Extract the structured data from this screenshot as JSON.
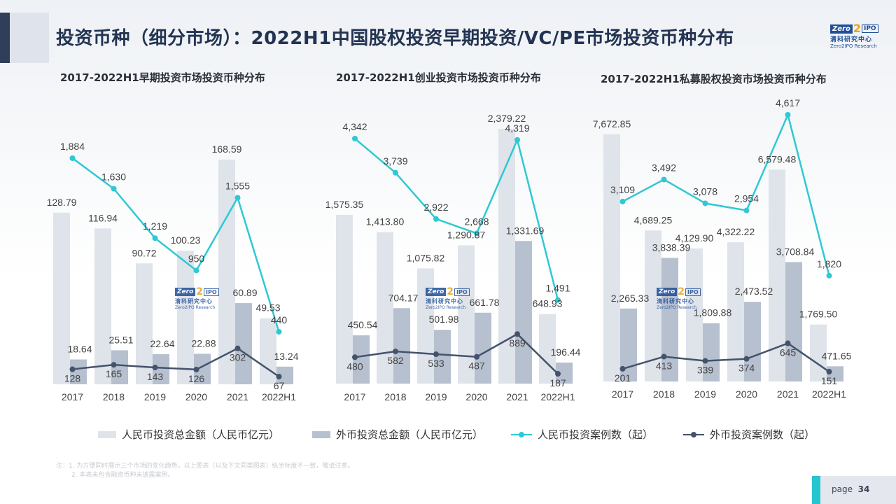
{
  "header": {
    "title": "投资币种（细分市场）：2022H1中国股权投资早期投资/VC/PE市场投资币种分布",
    "logo": {
      "top_left": "Zero",
      "digit": "2",
      "top_right": "IPO",
      "cn": "清科研究中心",
      "en": "Zero2IPO Research"
    }
  },
  "legend": {
    "rmb_amount": "人民币投资总金额（人民币亿元）",
    "fx_amount": "外币投资总金额（人民币亿元）",
    "rmb_cases": "人民币投资案例数（起）",
    "fx_cases": "外币投资案例数（起）"
  },
  "colors": {
    "rmb_bar": "#dfe3ea",
    "fx_bar": "#b6c0cf",
    "rmb_line": "#2ec9d3",
    "fx_line": "#44536b",
    "title": "#233452",
    "accent": "#27c5cf"
  },
  "notes": {
    "line1": "注：1. 为方便同时展示三个市场的变化趋势，以上图表（以及下文同类图表）纵坐标度不一致，敬请注意。",
    "line2": "2. 本表未包含融资币种未披露案例。"
  },
  "footer": {
    "page_label": "page",
    "page_number": "34"
  },
  "chart_data": [
    {
      "type": "bar",
      "title": "2017-2022H1早期投资市场投资币种分布",
      "categories": [
        "2017",
        "2018",
        "2019",
        "2020",
        "2021",
        "2022H1"
      ],
      "series": [
        {
          "name": "人民币投资总金额（人民币亿元）",
          "kind": "bar",
          "values": [
            128.79,
            116.94,
            90.72,
            100.23,
            168.59,
            49.53
          ],
          "labels": [
            "128.79",
            "116.94",
            "90.72",
            "100.23",
            "168.59",
            "49.53"
          ]
        },
        {
          "name": "外币投资总金额（人民币亿元）",
          "kind": "bar",
          "values": [
            18.64,
            25.51,
            22.64,
            22.88,
            60.89,
            13.24
          ],
          "labels": [
            "18.64",
            "25.51",
            "22.64",
            "22.88",
            "60.89",
            "13.24"
          ]
        },
        {
          "name": "人民币投资案例数（起）",
          "kind": "line",
          "values": [
            1884,
            1630,
            1219,
            950,
            1555,
            440
          ],
          "labels": [
            "1,884",
            "1,630",
            "1,219",
            "950",
            "1,555",
            "440"
          ]
        },
        {
          "name": "外币投资案例数（起）",
          "kind": "line",
          "values": [
            128,
            165,
            143,
            126,
            302,
            67
          ],
          "labels": [
            "128",
            "165",
            "143",
            "126",
            "302",
            "67"
          ]
        }
      ]
    },
    {
      "type": "bar",
      "title": "2017-2022H1创业投资市场投资币种分布",
      "categories": [
        "2017",
        "2018",
        "2019",
        "2020",
        "2021",
        "2022H1"
      ],
      "series": [
        {
          "name": "人民币投资总金额（人民币亿元）",
          "kind": "bar",
          "values": [
            1575.35,
            1413.8,
            1075.82,
            1290.87,
            2379.22,
            648.93
          ],
          "labels": [
            "1,575.35",
            "1,413.80",
            "1,075.82",
            "1,290.87",
            "2,379.22",
            "648.93"
          ]
        },
        {
          "name": "外币投资总金额（人民币亿元）",
          "kind": "bar",
          "values": [
            450.54,
            704.17,
            501.98,
            661.78,
            1331.69,
            196.44
          ],
          "labels": [
            "450.54",
            "704.17",
            "501.98",
            "661.78",
            "1,331.69",
            "196.44"
          ]
        },
        {
          "name": "人民币投资案例数（起）",
          "kind": "line",
          "values": [
            4342,
            3739,
            2922,
            2668,
            4319,
            1491
          ],
          "labels": [
            "4,342",
            "3,739",
            "2,922",
            "2,668",
            "4,319",
            "1,491"
          ]
        },
        {
          "name": "外币投资案例数（起）",
          "kind": "line",
          "values": [
            480,
            582,
            533,
            487,
            889,
            187
          ],
          "labels": [
            "480",
            "582",
            "533",
            "487",
            "889",
            "187"
          ]
        }
      ]
    },
    {
      "type": "bar",
      "title": "2017-2022H1私募股权投资市场投资币种分布",
      "categories": [
        "2017",
        "2018",
        "2019",
        "2020",
        "2021",
        "2022H1"
      ],
      "series": [
        {
          "name": "人民币投资总金额（人民币亿元）",
          "kind": "bar",
          "values": [
            7672.85,
            4689.25,
            4129.9,
            4322.22,
            6579.48,
            1769.5
          ],
          "labels": [
            "7,672.85",
            "4,689.25",
            "4,129.90",
            "4,322.22",
            "6,579.48",
            "1,769.50"
          ]
        },
        {
          "name": "外币投资总金额（人民币亿元）",
          "kind": "bar",
          "values": [
            2265.33,
            3838.39,
            1809.88,
            2473.52,
            3708.84,
            471.65
          ],
          "labels": [
            "2,265.33",
            "3,838.39",
            "1,809.88",
            "2,473.52",
            "3,708.84",
            "471.65"
          ]
        },
        {
          "name": "人民币投资案例数（起）",
          "kind": "line",
          "values": [
            3109,
            3492,
            3078,
            2954,
            4617,
            1820
          ],
          "labels": [
            "3,109",
            "3,492",
            "3,078",
            "2,954",
            "4,617",
            "1,820"
          ]
        },
        {
          "name": "外币投资案例数（起）",
          "kind": "line",
          "values": [
            201,
            413,
            339,
            374,
            645,
            151
          ],
          "labels": [
            "201",
            "413",
            "339",
            "374",
            "645",
            "151"
          ]
        }
      ]
    }
  ]
}
